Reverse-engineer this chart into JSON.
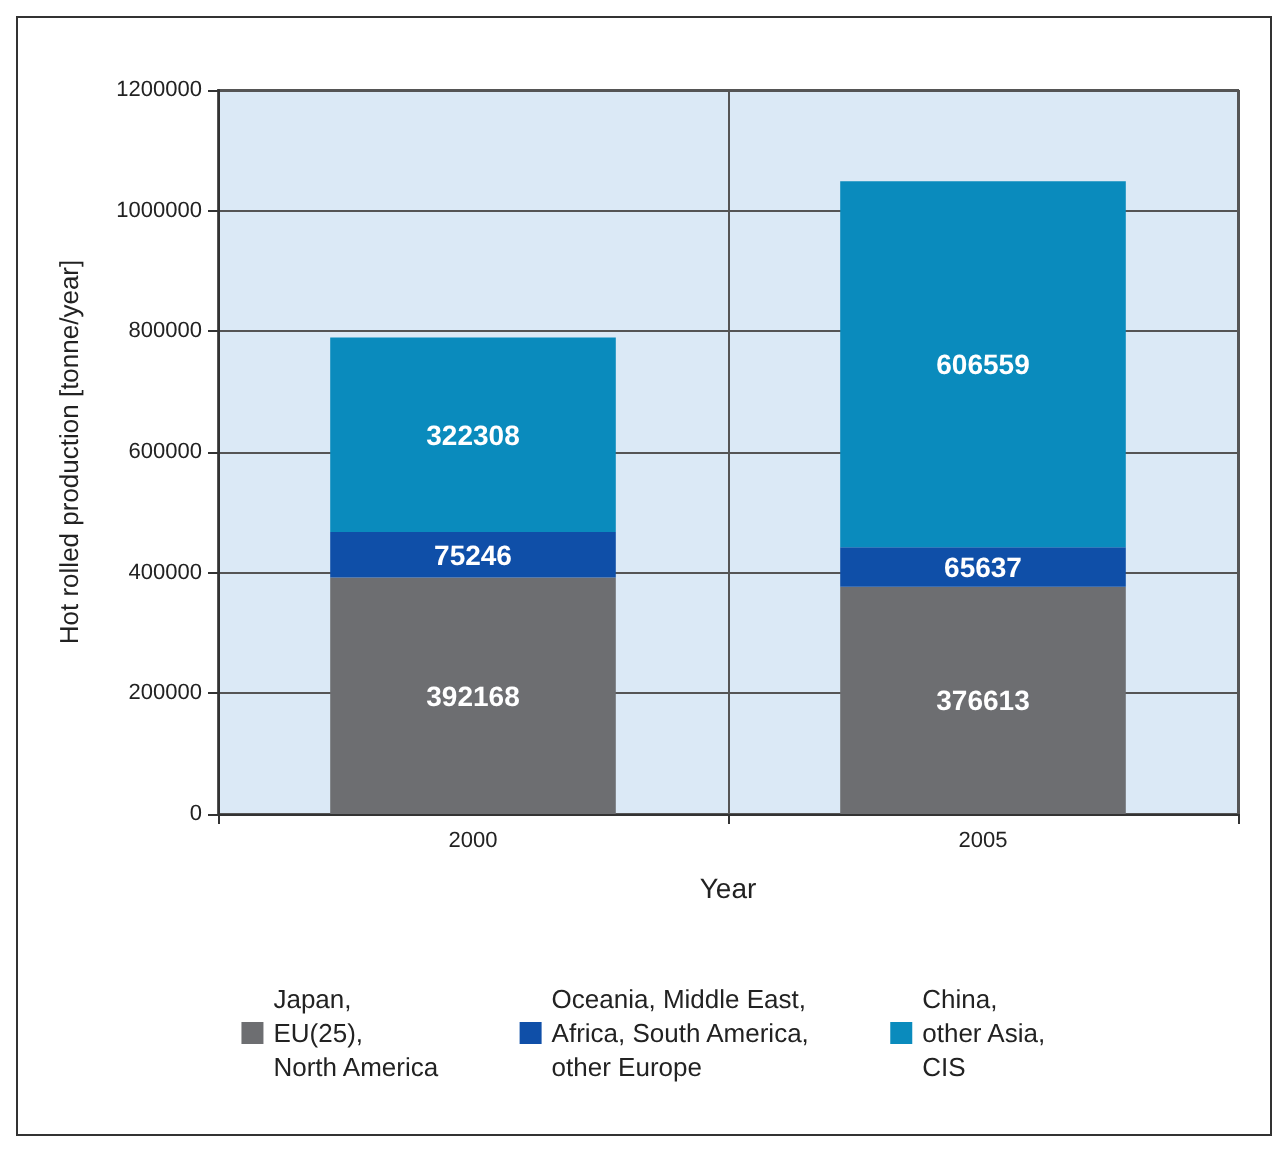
{
  "chart_data": {
    "type": "bar",
    "stacked": true,
    "xlabel": "Year",
    "ylabel": "Hot rolled production [tonne/year]",
    "categories": [
      "2000",
      "2005"
    ],
    "series": [
      {
        "name": "Japan,\nEU(25),\nNorth America",
        "color": "#6d6e71",
        "values": [
          392168,
          376613
        ]
      },
      {
        "name": "Oceania, Middle East,\nAfrica, South America,\nother Europe",
        "color": "#0f4fa8",
        "values": [
          75246,
          65637
        ]
      },
      {
        "name": "China,\nother Asia,\nCIS",
        "color": "#0a8bbd",
        "values": [
          322308,
          606559
        ]
      }
    ],
    "ylim": [
      0,
      1200000
    ],
    "yticks": [
      0,
      200000,
      400000,
      600000,
      800000,
      1000000,
      1200000
    ],
    "grid": true,
    "legend": "bottom",
    "data_labels": true
  }
}
